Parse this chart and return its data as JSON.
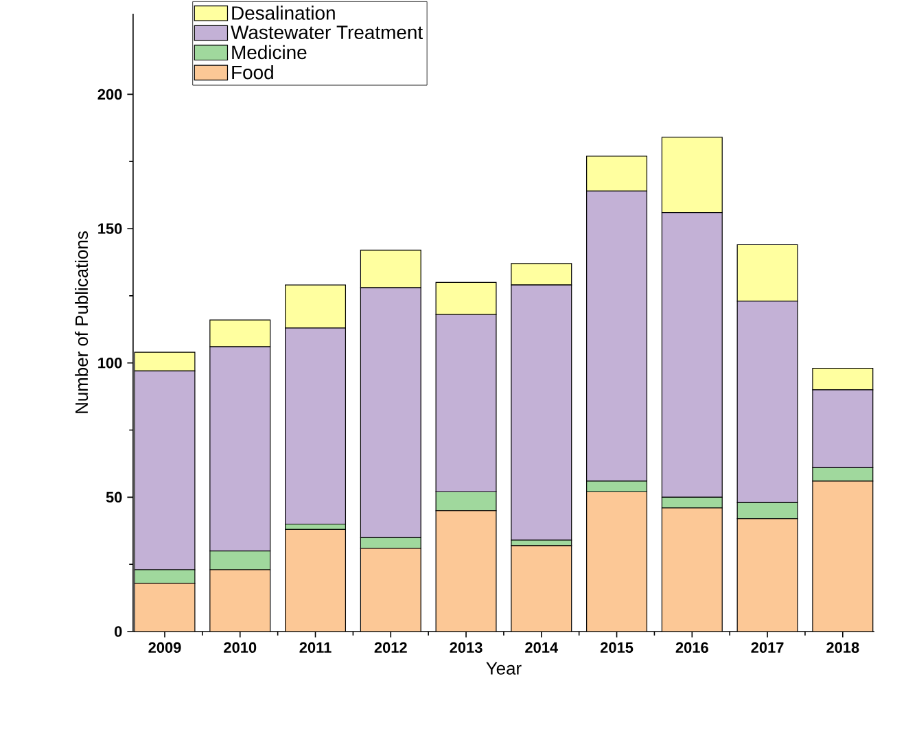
{
  "chart_data": {
    "type": "bar",
    "stacked": true,
    "xlabel": "Year",
    "ylabel": "Number of Publications",
    "categories": [
      "2009",
      "2010",
      "2011",
      "2012",
      "2013",
      "2014",
      "2015",
      "2016",
      "2017",
      "2018"
    ],
    "series": [
      {
        "name": "Food",
        "color": "#fcc896",
        "values": [
          18,
          23,
          38,
          31,
          45,
          32,
          52,
          46,
          42,
          56
        ]
      },
      {
        "name": "Medicine",
        "color": "#a0d89d",
        "values": [
          5,
          7,
          2,
          4,
          7,
          2,
          4,
          4,
          6,
          5
        ]
      },
      {
        "name": "Wastewater Treatment",
        "color": "#c3b1d6",
        "values": [
          74,
          76,
          73,
          93,
          66,
          95,
          108,
          106,
          75,
          29
        ]
      },
      {
        "name": "Desalination",
        "color": "#ffff9f",
        "values": [
          7,
          10,
          16,
          14,
          12,
          8,
          13,
          28,
          21,
          8
        ]
      }
    ],
    "ylim": [
      0,
      230
    ],
    "yticks": [
      0,
      50,
      100,
      150,
      200
    ],
    "grid": false,
    "legend": "top left"
  }
}
